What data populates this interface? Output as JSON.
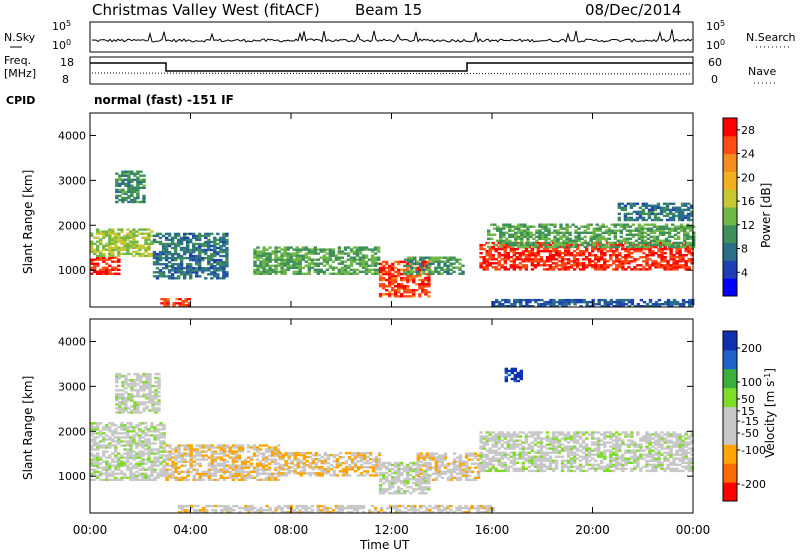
{
  "header": {
    "site": "Christmas Valley West (fitACF)",
    "beam": "Beam 15",
    "date": "08/Dec/2014"
  },
  "noise_panel": {
    "left_label": "N.Sky",
    "right_label": "N.Search",
    "left_ticks": [
      "10^5",
      "10^0"
    ],
    "right_ticks": [
      "10^5",
      "10^0"
    ]
  },
  "freq_panel": {
    "left_label_1": "Freq.",
    "left_label_2": "[MHz]",
    "right_label": "Nave",
    "left_ticks": [
      "18",
      "8"
    ],
    "right_ticks": [
      "60",
      "0"
    ],
    "cpid_label": "CPID",
    "cpid_text": "normal (fast) -151 IF"
  },
  "chart_data": [
    {
      "type": "heatmap",
      "title": "",
      "xlabel": "",
      "ylabel": "Slant Range [km]",
      "x_ticks": [
        "00:00",
        "04:00",
        "08:00",
        "12:00",
        "16:00",
        "20:00",
        "00:00"
      ],
      "y_ticks": [
        1000,
        2000,
        3000,
        4000
      ],
      "ylim": [
        180,
        4500
      ],
      "colorbar": {
        "label": "Power [dB]",
        "ticks": [
          4,
          8,
          12,
          16,
          20,
          24,
          28
        ],
        "range": [
          0,
          30
        ],
        "colors": [
          "#0000ff",
          "#1f3fb4",
          "#2a6e8a",
          "#3f8f5a",
          "#6fb848",
          "#c8c832",
          "#f0b020",
          "#f58c1e",
          "#ff4b14",
          "#ff0000"
        ]
      },
      "regions": [
        {
          "t": [
            0.0,
            1.2
          ],
          "r": [
            900,
            1300
          ],
          "value": 27
        },
        {
          "t": [
            0.0,
            2.5
          ],
          "r": [
            1300,
            1900
          ],
          "value": 15
        },
        {
          "t": [
            1.0,
            2.2
          ],
          "r": [
            2500,
            3200
          ],
          "value": 10
        },
        {
          "t": [
            2.5,
            5.5
          ],
          "r": [
            800,
            1800
          ],
          "value": 8
        },
        {
          "t": [
            2.8,
            4.0
          ],
          "r": [
            200,
            350
          ],
          "value": 26
        },
        {
          "t": [
            6.5,
            11.5
          ],
          "r": [
            900,
            1500
          ],
          "value": 12
        },
        {
          "t": [
            11.5,
            13.5
          ],
          "r": [
            400,
            1200
          ],
          "value": 26
        },
        {
          "t": [
            12.5,
            14.8
          ],
          "r": [
            900,
            1300
          ],
          "value": 11
        },
        {
          "t": [
            15.5,
            24.0
          ],
          "r": [
            1000,
            1600
          ],
          "value": 27
        },
        {
          "t": [
            15.8,
            24.0
          ],
          "r": [
            1500,
            2000
          ],
          "value": 12
        },
        {
          "t": [
            16.0,
            24.0
          ],
          "r": [
            180,
            320
          ],
          "value": 6
        },
        {
          "t": [
            21.0,
            24.0
          ],
          "r": [
            2100,
            2500
          ],
          "value": 8
        }
      ]
    },
    {
      "type": "heatmap",
      "title": "",
      "xlabel": "Time UT",
      "ylabel": "Slant Range [km]",
      "x_ticks": [
        "00:00",
        "04:00",
        "08:00",
        "12:00",
        "16:00",
        "20:00",
        "00:00"
      ],
      "y_ticks": [
        1000,
        2000,
        3000,
        4000
      ],
      "ylim": [
        180,
        4500
      ],
      "colorbar": {
        "label": "Velocity [m s^-1]",
        "ticks": [
          200,
          100,
          50,
          15,
          -15,
          -50,
          -100,
          -200
        ],
        "range": [
          -250,
          250
        ],
        "colors": [
          "#ff0000",
          "#ff6a00",
          "#ffa500",
          "#c8c8c8",
          "#c8c8c8",
          "#7fdc28",
          "#3cae3c",
          "#1e64c8",
          "#1030b0"
        ]
      },
      "regions": [
        {
          "t": [
            0.0,
            3.0
          ],
          "r": [
            900,
            2200
          ],
          "value": 0
        },
        {
          "t": [
            1.0,
            2.8
          ],
          "r": [
            2400,
            3300
          ],
          "value": 0
        },
        {
          "t": [
            3.0,
            7.5
          ],
          "r": [
            900,
            1700
          ],
          "value": -70
        },
        {
          "t": [
            7.5,
            11.5
          ],
          "r": [
            1000,
            1500
          ],
          "value": -80
        },
        {
          "t": [
            11.5,
            13.5
          ],
          "r": [
            600,
            1300
          ],
          "value": 0
        },
        {
          "t": [
            13.0,
            15.5
          ],
          "r": [
            900,
            1500
          ],
          "value": -60
        },
        {
          "t": [
            15.5,
            24.0
          ],
          "r": [
            1100,
            2000
          ],
          "value": 0
        },
        {
          "t": [
            16.5,
            17.2
          ],
          "r": [
            3100,
            3400
          ],
          "value": 220
        },
        {
          "t": [
            3.5,
            16.0
          ],
          "r": [
            180,
            320
          ],
          "value": -60
        }
      ]
    }
  ]
}
